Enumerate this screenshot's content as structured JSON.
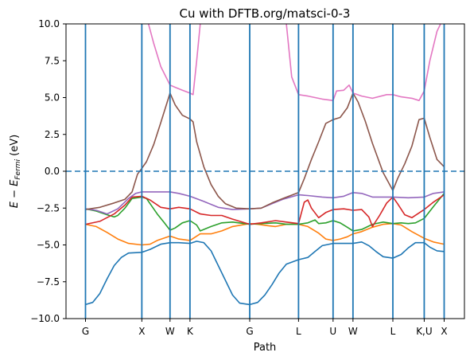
{
  "chart_data": {
    "type": "line",
    "title": "Cu with DFTB.org/matsci-0-3",
    "xlabel": "Path",
    "ylabel_parts": {
      "main": "E − E",
      "sub": "Fermi",
      "unit": " (eV)"
    },
    "ylim": [
      -10,
      10
    ],
    "xlim": [
      0,
      1
    ],
    "yticks": [
      -10.0,
      -7.5,
      -5.0,
      -2.5,
      0.0,
      2.5,
      5.0,
      7.5,
      10.0
    ],
    "ytick_labels": [
      "−10.0",
      "−7.5",
      "−5.0",
      "−2.5",
      "0.0",
      "2.5",
      "5.0",
      "7.5",
      "10.0"
    ],
    "kpoints": [
      {
        "label": "G",
        "x": 0.0
      },
      {
        "label": "X",
        "x": 0.1571
      },
      {
        "label": "W",
        "x": 0.2357
      },
      {
        "label": "K",
        "x": 0.2913
      },
      {
        "label": "G",
        "x": 0.4579
      },
      {
        "label": "L",
        "x": 0.594
      },
      {
        "label": "U",
        "x": 0.6903
      },
      {
        "label": "W",
        "x": 0.7458
      },
      {
        "label": "L",
        "x": 0.857
      },
      {
        "label": "K,U",
        "x": 0.9444
      },
      {
        "label": "X",
        "x": 1.0
      }
    ],
    "fermi_level": 0.0,
    "grid": false,
    "series": [
      {
        "color": "#1f77b4",
        "points": [
          [
            0.0,
            -9.05
          ],
          [
            0.02,
            -8.9
          ],
          [
            0.04,
            -8.3
          ],
          [
            0.06,
            -7.3
          ],
          [
            0.08,
            -6.4
          ],
          [
            0.1,
            -5.85
          ],
          [
            0.12,
            -5.55
          ],
          [
            0.1571,
            -5.5
          ],
          [
            0.18,
            -5.3
          ],
          [
            0.21,
            -4.95
          ],
          [
            0.2357,
            -4.85
          ],
          [
            0.26,
            -4.85
          ],
          [
            0.2913,
            -4.9
          ],
          [
            0.31,
            -4.75
          ],
          [
            0.33,
            -4.85
          ],
          [
            0.35,
            -5.4
          ],
          [
            0.37,
            -6.4
          ],
          [
            0.39,
            -7.4
          ],
          [
            0.41,
            -8.4
          ],
          [
            0.43,
            -8.95
          ],
          [
            0.4579,
            -9.05
          ],
          [
            0.48,
            -8.9
          ],
          [
            0.5,
            -8.4
          ],
          [
            0.52,
            -7.7
          ],
          [
            0.54,
            -6.9
          ],
          [
            0.56,
            -6.3
          ],
          [
            0.594,
            -6.0
          ],
          [
            0.62,
            -5.85
          ],
          [
            0.64,
            -5.45
          ],
          [
            0.66,
            -5.05
          ],
          [
            0.6903,
            -4.9
          ],
          [
            0.7458,
            -4.9
          ],
          [
            0.77,
            -4.8
          ],
          [
            0.79,
            -5.05
          ],
          [
            0.81,
            -5.45
          ],
          [
            0.83,
            -5.8
          ],
          [
            0.857,
            -5.9
          ],
          [
            0.88,
            -5.65
          ],
          [
            0.9,
            -5.2
          ],
          [
            0.92,
            -4.85
          ],
          [
            0.9444,
            -4.85
          ],
          [
            0.96,
            -5.15
          ],
          [
            0.98,
            -5.4
          ],
          [
            1.0,
            -5.45
          ]
        ]
      },
      {
        "color": "#ff7f0e",
        "points": [
          [
            0.0,
            -3.6
          ],
          [
            0.03,
            -3.75
          ],
          [
            0.06,
            -4.15
          ],
          [
            0.09,
            -4.6
          ],
          [
            0.12,
            -4.9
          ],
          [
            0.1571,
            -5.0
          ],
          [
            0.18,
            -4.95
          ],
          [
            0.2,
            -4.7
          ],
          [
            0.2357,
            -4.4
          ],
          [
            0.26,
            -4.6
          ],
          [
            0.2913,
            -4.7
          ],
          [
            0.32,
            -4.25
          ],
          [
            0.35,
            -4.25
          ],
          [
            0.38,
            -4.05
          ],
          [
            0.41,
            -3.75
          ],
          [
            0.4579,
            -3.55
          ],
          [
            0.48,
            -3.6
          ],
          [
            0.51,
            -3.7
          ],
          [
            0.53,
            -3.75
          ],
          [
            0.56,
            -3.6
          ],
          [
            0.594,
            -3.6
          ],
          [
            0.62,
            -3.75
          ],
          [
            0.65,
            -4.2
          ],
          [
            0.67,
            -4.6
          ],
          [
            0.6903,
            -4.7
          ],
          [
            0.71,
            -4.6
          ],
          [
            0.73,
            -4.45
          ],
          [
            0.7458,
            -4.25
          ],
          [
            0.77,
            -4.1
          ],
          [
            0.8,
            -3.8
          ],
          [
            0.83,
            -3.6
          ],
          [
            0.857,
            -3.55
          ],
          [
            0.88,
            -3.65
          ],
          [
            0.91,
            -4.1
          ],
          [
            0.9444,
            -4.55
          ],
          [
            0.97,
            -4.8
          ],
          [
            1.0,
            -4.95
          ]
        ]
      },
      {
        "color": "#2ca02c",
        "points": [
          [
            0.0,
            -2.55
          ],
          [
            0.03,
            -2.7
          ],
          [
            0.06,
            -2.95
          ],
          [
            0.08,
            -3.1
          ],
          [
            0.09,
            -3.0
          ],
          [
            0.11,
            -2.5
          ],
          [
            0.13,
            -1.85
          ],
          [
            0.1571,
            -1.75
          ],
          [
            0.17,
            -1.85
          ],
          [
            0.2,
            -2.9
          ],
          [
            0.22,
            -3.5
          ],
          [
            0.2357,
            -4.0
          ],
          [
            0.25,
            -3.85
          ],
          [
            0.27,
            -3.5
          ],
          [
            0.2913,
            -3.35
          ],
          [
            0.31,
            -3.65
          ],
          [
            0.32,
            -4.05
          ],
          [
            0.35,
            -3.75
          ],
          [
            0.38,
            -3.5
          ],
          [
            0.41,
            -3.45
          ],
          [
            0.4579,
            -3.6
          ],
          [
            0.49,
            -3.55
          ],
          [
            0.53,
            -3.5
          ],
          [
            0.56,
            -3.6
          ],
          [
            0.594,
            -3.6
          ],
          [
            0.62,
            -3.5
          ],
          [
            0.64,
            -3.3
          ],
          [
            0.65,
            -3.55
          ],
          [
            0.67,
            -3.5
          ],
          [
            0.6903,
            -3.35
          ],
          [
            0.71,
            -3.5
          ],
          [
            0.73,
            -3.8
          ],
          [
            0.7458,
            -4.05
          ],
          [
            0.77,
            -3.95
          ],
          [
            0.8,
            -3.6
          ],
          [
            0.83,
            -3.45
          ],
          [
            0.857,
            -3.55
          ],
          [
            0.88,
            -3.5
          ],
          [
            0.9,
            -3.55
          ],
          [
            0.92,
            -3.5
          ],
          [
            0.9444,
            -3.2
          ],
          [
            0.97,
            -2.4
          ],
          [
            1.0,
            -1.5
          ]
        ]
      },
      {
        "color": "#d62728",
        "points": [
          [
            0.0,
            -3.6
          ],
          [
            0.04,
            -3.4
          ],
          [
            0.08,
            -2.9
          ],
          [
            0.11,
            -2.3
          ],
          [
            0.13,
            -1.75
          ],
          [
            0.1571,
            -1.7
          ],
          [
            0.18,
            -1.95
          ],
          [
            0.21,
            -2.45
          ],
          [
            0.2357,
            -2.55
          ],
          [
            0.26,
            -2.45
          ],
          [
            0.2913,
            -2.55
          ],
          [
            0.32,
            -2.9
          ],
          [
            0.35,
            -3.0
          ],
          [
            0.38,
            -3.0
          ],
          [
            0.41,
            -3.25
          ],
          [
            0.4579,
            -3.6
          ],
          [
            0.49,
            -3.5
          ],
          [
            0.53,
            -3.35
          ],
          [
            0.56,
            -3.45
          ],
          [
            0.594,
            -3.55
          ],
          [
            0.61,
            -2.1
          ],
          [
            0.62,
            -1.95
          ],
          [
            0.63,
            -2.5
          ],
          [
            0.65,
            -3.15
          ],
          [
            0.67,
            -2.8
          ],
          [
            0.6903,
            -2.6
          ],
          [
            0.72,
            -2.55
          ],
          [
            0.7458,
            -2.65
          ],
          [
            0.77,
            -2.6
          ],
          [
            0.79,
            -3.1
          ],
          [
            0.8,
            -3.75
          ],
          [
            0.82,
            -3.0
          ],
          [
            0.84,
            -2.15
          ],
          [
            0.857,
            -1.75
          ],
          [
            0.87,
            -2.2
          ],
          [
            0.89,
            -2.95
          ],
          [
            0.91,
            -3.15
          ],
          [
            0.9444,
            -2.6
          ],
          [
            0.97,
            -2.1
          ],
          [
            1.0,
            -1.6
          ]
        ]
      },
      {
        "color": "#9467bd",
        "points": [
          [
            0.0,
            -2.55
          ],
          [
            0.03,
            -2.65
          ],
          [
            0.06,
            -2.9
          ],
          [
            0.09,
            -2.55
          ],
          [
            0.12,
            -1.85
          ],
          [
            0.14,
            -1.5
          ],
          [
            0.1571,
            -1.4
          ],
          [
            0.18,
            -1.4
          ],
          [
            0.21,
            -1.4
          ],
          [
            0.2357,
            -1.4
          ],
          [
            0.26,
            -1.5
          ],
          [
            0.2913,
            -1.7
          ],
          [
            0.33,
            -2.05
          ],
          [
            0.37,
            -2.45
          ],
          [
            0.41,
            -2.6
          ],
          [
            0.4579,
            -2.55
          ],
          [
            0.49,
            -2.5
          ],
          [
            0.52,
            -2.2
          ],
          [
            0.55,
            -1.9
          ],
          [
            0.594,
            -1.6
          ],
          [
            0.62,
            -1.65
          ],
          [
            0.66,
            -1.75
          ],
          [
            0.6903,
            -1.8
          ],
          [
            0.72,
            -1.7
          ],
          [
            0.7458,
            -1.45
          ],
          [
            0.77,
            -1.5
          ],
          [
            0.8,
            -1.75
          ],
          [
            0.857,
            -1.75
          ],
          [
            0.9,
            -1.8
          ],
          [
            0.9444,
            -1.75
          ],
          [
            0.97,
            -1.5
          ],
          [
            1.0,
            -1.4
          ]
        ]
      },
      {
        "color": "#8c564b",
        "points": [
          [
            0.0,
            -2.6
          ],
          [
            0.04,
            -2.45
          ],
          [
            0.08,
            -2.15
          ],
          [
            0.11,
            -1.9
          ],
          [
            0.13,
            -1.4
          ],
          [
            0.145,
            -0.2
          ],
          [
            0.1571,
            0.2
          ],
          [
            0.17,
            0.65
          ],
          [
            0.19,
            1.8
          ],
          [
            0.21,
            3.3
          ],
          [
            0.2357,
            5.3
          ],
          [
            0.25,
            4.5
          ],
          [
            0.27,
            3.8
          ],
          [
            0.2913,
            3.55
          ],
          [
            0.3,
            3.35
          ],
          [
            0.31,
            2.0
          ],
          [
            0.33,
            0.3
          ],
          [
            0.35,
            -0.9
          ],
          [
            0.37,
            -1.7
          ],
          [
            0.39,
            -2.2
          ],
          [
            0.42,
            -2.5
          ],
          [
            0.4579,
            -2.55
          ],
          [
            0.49,
            -2.5
          ],
          [
            0.52,
            -2.15
          ],
          [
            0.55,
            -1.85
          ],
          [
            0.594,
            -1.45
          ],
          [
            0.61,
            -0.5
          ],
          [
            0.63,
            0.8
          ],
          [
            0.65,
            2.0
          ],
          [
            0.67,
            3.25
          ],
          [
            0.6903,
            3.5
          ],
          [
            0.71,
            3.65
          ],
          [
            0.73,
            4.3
          ],
          [
            0.7458,
            5.3
          ],
          [
            0.76,
            4.7
          ],
          [
            0.78,
            3.4
          ],
          [
            0.8,
            1.9
          ],
          [
            0.83,
            -0.1
          ],
          [
            0.857,
            -1.3
          ],
          [
            0.87,
            -0.5
          ],
          [
            0.89,
            0.5
          ],
          [
            0.91,
            1.7
          ],
          [
            0.93,
            3.5
          ],
          [
            0.9444,
            3.6
          ],
          [
            0.96,
            2.3
          ],
          [
            0.98,
            0.8
          ],
          [
            1.0,
            0.3
          ]
        ]
      },
      {
        "color": "#e377c2",
        "points": [
          [
            0.1571,
            12.0
          ],
          [
            0.17,
            10.5
          ],
          [
            0.19,
            8.7
          ],
          [
            0.21,
            7.1
          ],
          [
            0.2357,
            5.85
          ],
          [
            0.25,
            5.7
          ],
          [
            0.27,
            5.5
          ],
          [
            0.2913,
            5.3
          ],
          [
            0.3,
            5.2
          ],
          [
            0.31,
            7.5
          ],
          [
            0.32,
            10.0
          ],
          [
            0.33,
            12.0
          ]
        ],
        "points2": [
          [
            0.55,
            12.0
          ],
          [
            0.56,
            10.0
          ],
          [
            0.575,
            6.4
          ],
          [
            0.594,
            5.2
          ],
          [
            0.62,
            5.1
          ],
          [
            0.66,
            4.9
          ],
          [
            0.6903,
            4.8
          ],
          [
            0.7,
            5.45
          ],
          [
            0.72,
            5.5
          ],
          [
            0.735,
            5.85
          ],
          [
            0.7458,
            5.3
          ],
          [
            0.77,
            5.1
          ],
          [
            0.8,
            4.95
          ],
          [
            0.84,
            5.2
          ],
          [
            0.857,
            5.2
          ],
          [
            0.88,
            5.05
          ],
          [
            0.91,
            4.95
          ],
          [
            0.93,
            4.8
          ],
          [
            0.9444,
            5.45
          ],
          [
            0.96,
            7.5
          ],
          [
            0.98,
            9.5
          ],
          [
            1.0,
            10.5
          ]
        ]
      }
    ]
  }
}
